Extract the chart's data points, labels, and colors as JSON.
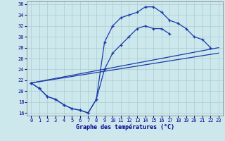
{
  "xlabel": "Graphe des températures (°C)",
  "background_color": "#cce8ec",
  "grid_color": "#aaccd0",
  "line_color": "#1a3aaa",
  "xlim": [
    -0.5,
    23.5
  ],
  "ylim": [
    15.5,
    36.5
  ],
  "yticks": [
    16,
    18,
    20,
    22,
    24,
    26,
    28,
    30,
    32,
    34,
    36
  ],
  "xticks": [
    0,
    1,
    2,
    3,
    4,
    5,
    6,
    7,
    8,
    9,
    10,
    11,
    12,
    13,
    14,
    15,
    16,
    17,
    18,
    19,
    20,
    21,
    22,
    23
  ],
  "curve1_x": [
    0,
    1,
    2,
    3,
    4,
    5,
    6,
    7,
    8,
    9,
    10,
    11,
    12,
    13,
    14,
    15,
    16,
    17,
    18,
    19,
    20,
    21,
    22
  ],
  "curve1_y": [
    21.5,
    20.5,
    19.0,
    18.5,
    17.5,
    16.8,
    16.5,
    16.0,
    18.5,
    29.0,
    32.0,
    33.5,
    34.0,
    34.5,
    35.5,
    35.5,
    34.5,
    33.0,
    32.5,
    31.5,
    30.0,
    29.5,
    28.0
  ],
  "curve2_x": [
    0,
    1,
    2,
    3,
    4,
    5,
    6,
    7,
    8,
    9,
    10,
    11,
    12,
    13,
    14,
    15,
    16,
    17
  ],
  "curve2_y": [
    21.5,
    20.5,
    19.0,
    18.5,
    17.5,
    16.8,
    16.5,
    16.0,
    18.5,
    24.0,
    27.0,
    28.5,
    30.0,
    31.5,
    32.0,
    31.5,
    31.5,
    30.5
  ],
  "line3_x": [
    0,
    23
  ],
  "line3_y": [
    21.5,
    28.0
  ],
  "line4_x": [
    0,
    23
  ],
  "line4_y": [
    21.5,
    27.0
  ]
}
